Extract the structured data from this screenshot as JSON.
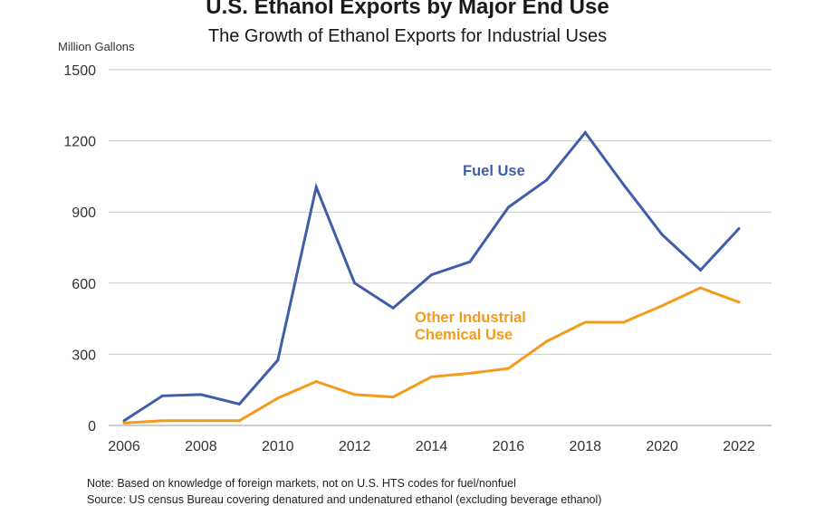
{
  "chart_data": {
    "type": "line",
    "title": "U.S. Ethanol Exports by Major End Use",
    "subtitle": "The Growth of Ethanol Exports for Industrial Uses",
    "ylabel": "Million Gallons",
    "xlabel": "",
    "ylim": [
      0,
      1500
    ],
    "yticks": [
      0,
      300,
      600,
      900,
      1200,
      1500
    ],
    "xticks": [
      2006,
      2008,
      2010,
      2012,
      2014,
      2016,
      2018,
      2020,
      2022
    ],
    "xlim": [
      2006,
      2022
    ],
    "grid": true,
    "legend": "inline labels",
    "x": [
      2006,
      2007,
      2008,
      2009,
      2010,
      2011,
      2012,
      2013,
      2014,
      2015,
      2016,
      2017,
      2018,
      2019,
      2020,
      2021,
      2022
    ],
    "series": [
      {
        "name": "Fuel Use",
        "color": "#3f5ea8",
        "values": [
          20,
          125,
          130,
          90,
          275,
          1005,
          600,
          495,
          635,
          690,
          920,
          1035,
          1235,
          1015,
          805,
          655,
          830
        ]
      },
      {
        "name": "Other Industrial Chemical Use",
        "label_lines": [
          "Other Industrial",
          "Chemical Use"
        ],
        "color": "#f39b1b",
        "values": [
          10,
          20,
          20,
          20,
          115,
          185,
          130,
          120,
          205,
          220,
          240,
          355,
          435,
          435,
          505,
          580,
          520
        ]
      }
    ]
  },
  "notes": {
    "line1": "Note: Based on knowledge of foreign markets, not on U.S. HTS codes for fuel/nonfuel",
    "line2": "Source: US census Bureau covering denatured and undenatured ethanol (excluding beverage ethanol)"
  }
}
